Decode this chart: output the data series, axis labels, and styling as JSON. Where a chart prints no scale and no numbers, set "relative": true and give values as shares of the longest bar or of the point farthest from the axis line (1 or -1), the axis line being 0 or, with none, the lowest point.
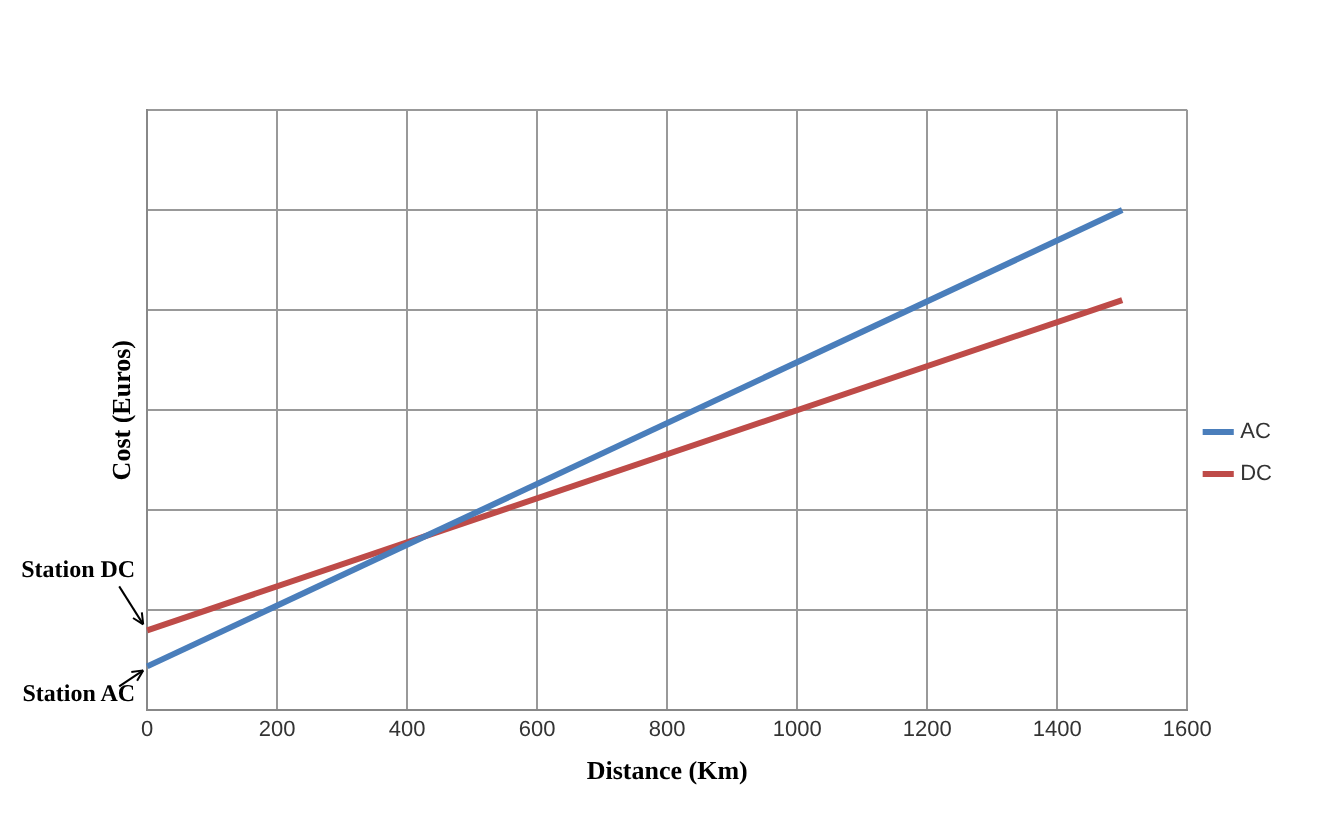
{
  "chart_data": {
    "type": "line",
    "xlabel": "Distance (Km)",
    "ylabel": "Cost (Euros)",
    "relative": true,
    "xlim": [
      0,
      1600
    ],
    "xticks": [
      0,
      200,
      400,
      600,
      800,
      1000,
      1200,
      1400,
      1600
    ],
    "x": [
      0,
      1500
    ],
    "series": [
      {
        "name": "AC",
        "color": "#4a7ebb",
        "values": [
          0.088,
          1
        ]
      },
      {
        "name": "DC",
        "color": "#be4b48",
        "values": [
          0.16,
          0.82
        ]
      }
    ],
    "annotations": [
      {
        "text": "Station DC",
        "x": 0,
        "y": 0.16
      },
      {
        "text": "Station AC",
        "x": 0,
        "y": 0.088
      }
    ],
    "grid": true,
    "legend": "right",
    "marker": "none"
  }
}
